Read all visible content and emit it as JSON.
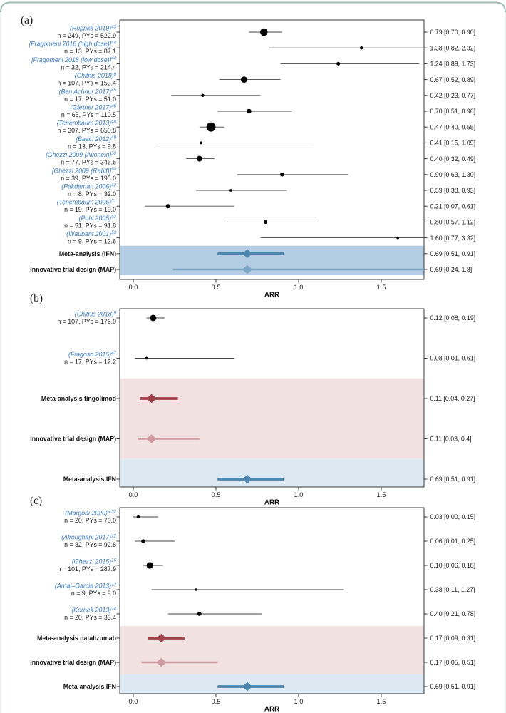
{
  "figure": {
    "description": "Forest plots of annualized relapse rate (ARR) meta-analyses",
    "xlabel": "ARR"
  },
  "colors": {
    "study_label": "#3878bd",
    "ci_line": "#454545",
    "marker": "#000000",
    "box_stroke": "#3a3a3a",
    "ifn_dark": "#4c86ad",
    "ifn_light": "#7ba6c5",
    "red_dark": "#a0424b",
    "red_light": "#cf99a0",
    "band_blue_strong": "#b4cde2",
    "band_blue_light": "#dde9f2",
    "band_pink": "#f2e1e1",
    "frame_line": "#9fbdb5"
  },
  "chart_data": [
    {
      "type": "forest",
      "panel_label": "(a)",
      "xlabel": "ARR",
      "xticks": [
        "0.0",
        "0.5",
        "1.0",
        "1.5"
      ],
      "xtick_values": [
        0,
        0.5,
        1,
        1.5
      ],
      "xlim": [
        -0.082,
        1.758
      ],
      "rows": [
        {
          "kind": "study",
          "citation": "(Huppke 2019)",
          "ref": "43",
          "stats": "n = 249, PYs = 522.9",
          "est": 0.79,
          "lo": 0.7,
          "hi": 0.9,
          "value": "0.79 [0.70, 0.90]",
          "size": 5.2
        },
        {
          "kind": "study",
          "citation": "[Fragomeni 2018 (high dose)]",
          "ref": "44",
          "stats": "n = 13, PYs = 87.1",
          "est": 1.38,
          "lo": 0.82,
          "hi": 2.32,
          "value": "1.38 [0.82, 2.32]",
          "size": 2.2
        },
        {
          "kind": "study",
          "citation": "[Fragomeni 2018 (low dose)]",
          "ref": "44",
          "stats": "n = 32, PYs = 214.4",
          "est": 1.24,
          "lo": 0.89,
          "hi": 1.73,
          "value": "1.24 [0.89, 1.73]",
          "size": 2.5
        },
        {
          "kind": "study",
          "citation": "(Chitnis 2018)",
          "ref": "9",
          "stats": "n = 107, PYs = 153.4",
          "est": 0.67,
          "lo": 0.52,
          "hi": 0.89,
          "value": "0.67 [0.52, 0.89]",
          "size": 4.4
        },
        {
          "kind": "study",
          "citation": "(Ben Achour 2017)",
          "ref": "45",
          "stats": "n = 17, PYs = 51.0",
          "est": 0.42,
          "lo": 0.23,
          "hi": 0.77,
          "value": "0.42 [0.23, 0.77]",
          "size": 2.2
        },
        {
          "kind": "study",
          "citation": "(Gärtner 2017)",
          "ref": "46",
          "stats": "n = 65, PYs = 110.5",
          "est": 0.7,
          "lo": 0.51,
          "hi": 0.96,
          "value": "0.70 [0.51, 0.96]",
          "size": 3.3
        },
        {
          "kind": "study",
          "citation": "(Tenembaum 2013)",
          "ref": "48",
          "stats": "n = 307, PYs = 650.8",
          "est": 0.47,
          "lo": 0.4,
          "hi": 0.55,
          "value": "0.47 [0.40, 0.55]",
          "size": 6.4
        },
        {
          "kind": "study",
          "citation": "(Basiri 2012)",
          "ref": "49",
          "stats": "n = 13, PYs = 9.8",
          "est": 0.41,
          "lo": 0.15,
          "hi": 1.09,
          "value": "0.41 [0.15, 1.09]",
          "size": 2.0
        },
        {
          "kind": "study",
          "citation": "[Ghezzi 2009 (Avonex)]",
          "ref": "50",
          "stats": "n = 77, PYs = 346.5",
          "est": 0.4,
          "lo": 0.32,
          "hi": 0.49,
          "value": "0.40 [0.32, 0.49]",
          "size": 4.0
        },
        {
          "kind": "study",
          "citation": "[Ghezzi 2009 (Rebif)]",
          "ref": "50",
          "stats": "n = 39, PYs = 195.0",
          "est": 0.9,
          "lo": 0.63,
          "hi": 1.3,
          "value": "0.90 [0.63, 1.30]",
          "size": 2.8
        },
        {
          "kind": "study",
          "citation": "(Pakdaman 2006)",
          "ref": "42",
          "stats": "n = 8, PYs = 32.0",
          "est": 0.59,
          "lo": 0.38,
          "hi": 0.93,
          "value": "0.59 [0.38, 0.93]",
          "size": 1.9
        },
        {
          "kind": "study",
          "citation": "(Tenembaum 2006)",
          "ref": "51",
          "stats": "n = 19, PYs = 19.0",
          "est": 0.21,
          "lo": 0.07,
          "hi": 0.61,
          "value": "0.21 [0.07, 0.61]",
          "size": 3.0
        },
        {
          "kind": "study",
          "citation": "(Pohl 2005)",
          "ref": "52",
          "stats": "n = 51, PYs = 91.8",
          "est": 0.8,
          "lo": 0.57,
          "hi": 1.12,
          "value": "0.80 [0.57, 1.12]",
          "size": 2.6
        },
        {
          "kind": "study",
          "citation": "(Waubant 2001)",
          "ref": "53",
          "stats": "n = 9, PYs = 12.6",
          "est": 1.6,
          "lo": 0.77,
          "hi": 3.32,
          "value": "1.60 [0.77, 3.32]",
          "size": 1.9
        },
        {
          "kind": "summary",
          "label": "Meta-analysis (IFN)",
          "est": 0.69,
          "lo": 0.51,
          "hi": 0.91,
          "value": "0.69 [0.51, 0.91]",
          "color_key": "ifn_dark"
        },
        {
          "kind": "summary",
          "label": "Innovative trial design (MAP)",
          "est": 0.69,
          "lo": 0.24,
          "hi": 1.8,
          "value": "0.69 [0.24, 1.8]",
          "color_key": "ifn_light"
        }
      ],
      "bands": [
        {
          "from_row": 14,
          "to_row": 15,
          "color_key": "band_blue_strong"
        }
      ]
    },
    {
      "type": "forest",
      "panel_label": "(b)",
      "xlabel": "ARR",
      "xticks": [
        "0.0",
        "0.5",
        "1.0",
        "1.5"
      ],
      "xtick_values": [
        0,
        0.5,
        1,
        1.5
      ],
      "xlim": [
        -0.082,
        1.758
      ],
      "rows": [
        {
          "kind": "study",
          "citation": "(Chitnis 2018)",
          "ref": "9",
          "stats": "n = 107, PYs = 176.0",
          "est": 0.12,
          "lo": 0.08,
          "hi": 0.19,
          "value": "0.12 [0.08, 0.19]",
          "size": 4.4
        },
        {
          "kind": "study",
          "citation": "(Fragoso 2015)",
          "ref": "47",
          "stats": "n = 17, PYs = 12.2",
          "est": 0.08,
          "lo": 0.01,
          "hi": 0.61,
          "value": "0.08 [0.01, 0.61]",
          "size": 1.9
        },
        {
          "kind": "summary",
          "label": "Meta-analysis fingolimod",
          "est": 0.11,
          "lo": 0.04,
          "hi": 0.27,
          "value": "0.11 [0.04, 0.27]",
          "color_key": "red_dark"
        },
        {
          "kind": "summary",
          "label": "Innovative trial design (MAP)",
          "est": 0.11,
          "lo": 0.03,
          "hi": 0.4,
          "value": "0.11 [0.03, 0.4]",
          "color_key": "red_light"
        },
        {
          "kind": "summary",
          "label": "Meta-analysis IFN",
          "est": 0.69,
          "lo": 0.51,
          "hi": 0.91,
          "value": "0.69 [0.51, 0.91]",
          "color_key": "ifn_dark"
        }
      ],
      "bands": [
        {
          "from_row": 2,
          "to_row": 3,
          "color_key": "band_pink"
        },
        {
          "from_row": 4,
          "to_row": 4,
          "color_key": "band_blue_light"
        }
      ]
    },
    {
      "type": "forest",
      "panel_label": "(c)",
      "xlabel": "ARR",
      "xticks": [
        "0.0",
        "0.5",
        "1.0",
        "1.5"
      ],
      "xtick_values": [
        0,
        0.5,
        1,
        1.5
      ],
      "xlim": [
        -0.082,
        1.758
      ],
      "rows": [
        {
          "kind": "study",
          "citation": "(Margoni 2020)",
          "ref": "a,32",
          "stats": "n = 20, PYs = 70.0",
          "est": 0.03,
          "lo": 0.0,
          "hi": 0.15,
          "value": "0.03 [0.00, 0.15]",
          "size": 2.2
        },
        {
          "kind": "study",
          "citation": "(Alroughani 2017)",
          "ref": "12",
          "stats": "n = 32, PYs = 92.8",
          "est": 0.06,
          "lo": 0.01,
          "hi": 0.25,
          "value": "0.06 [0.01, 0.25]",
          "size": 2.7
        },
        {
          "kind": "study",
          "citation": "(Ghezzi 2015)",
          "ref": "16",
          "stats": "n = 101, PYs = 287.9",
          "est": 0.1,
          "lo": 0.06,
          "hi": 0.18,
          "value": "0.10 [0.06, 0.18]",
          "size": 4.6
        },
        {
          "kind": "study",
          "citation": "(Arnal–Garcia 2013)",
          "ref": "13",
          "stats": "n = 9, PYs = 9.0",
          "est": 0.38,
          "lo": 0.11,
          "hi": 1.27,
          "value": "0.38 [0.11, 1.27]",
          "size": 1.7
        },
        {
          "kind": "study",
          "citation": "(Kornek 2013)",
          "ref": "14",
          "stats": "n = 20, PYs = 33.4",
          "est": 0.4,
          "lo": 0.21,
          "hi": 0.78,
          "value": "0.40 [0.21, 0.78]",
          "size": 2.9
        },
        {
          "kind": "summary",
          "label": "Meta-analysis natalizumab",
          "est": 0.17,
          "lo": 0.09,
          "hi": 0.31,
          "value": "0.17 [0.09, 0.31]",
          "color_key": "red_dark"
        },
        {
          "kind": "summary",
          "label": "Innovative trial design (MAP)",
          "est": 0.17,
          "lo": 0.05,
          "hi": 0.51,
          "value": "0.17 [0.05, 0.51]",
          "color_key": "red_light"
        },
        {
          "kind": "summary",
          "label": "Meta-analysis IFN",
          "est": 0.69,
          "lo": 0.51,
          "hi": 0.91,
          "value": "0.69 [0.51, 0.91]",
          "color_key": "ifn_dark"
        }
      ],
      "bands": [
        {
          "from_row": 5,
          "to_row": 6,
          "color_key": "band_pink"
        },
        {
          "from_row": 7,
          "to_row": 7,
          "color_key": "band_blue_light"
        }
      ]
    }
  ]
}
